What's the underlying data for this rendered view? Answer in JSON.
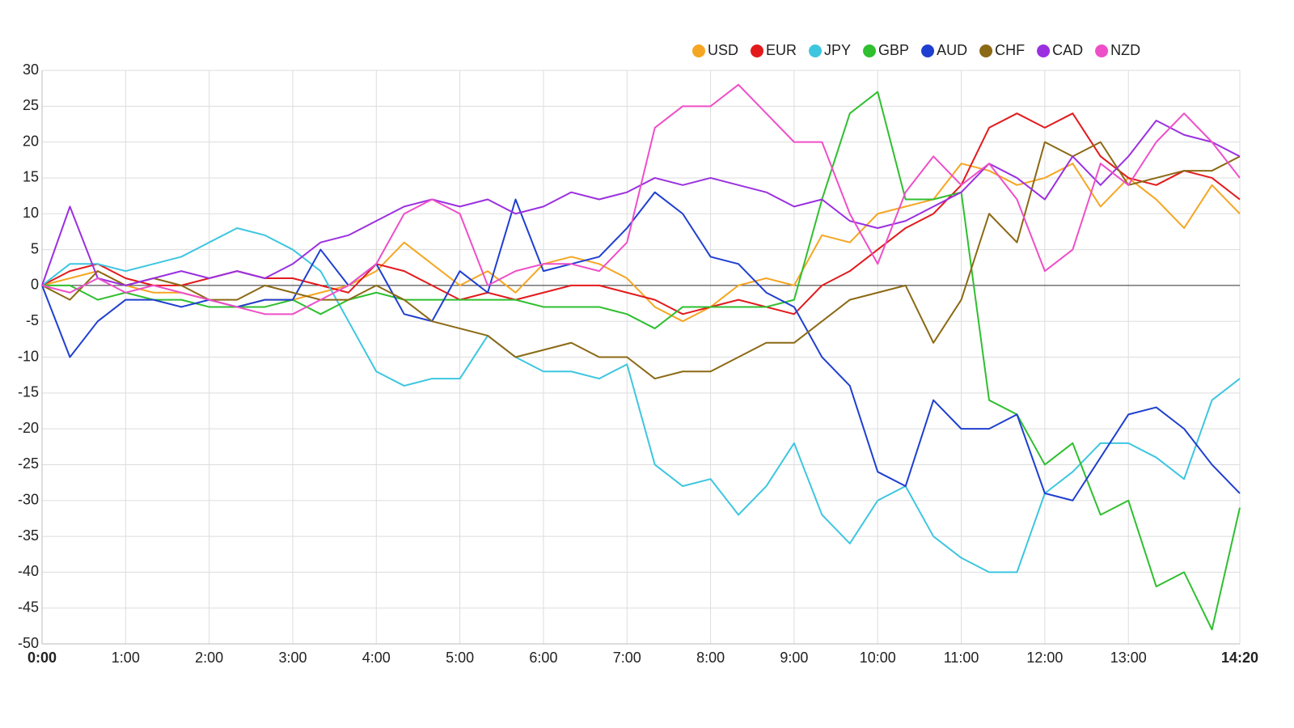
{
  "chart_data": {
    "type": "line",
    "x": [
      0,
      20,
      40,
      60,
      80,
      100,
      120,
      140,
      160,
      180,
      200,
      220,
      240,
      260,
      280,
      300,
      320,
      340,
      360,
      380,
      400,
      420,
      440,
      460,
      480,
      500,
      520,
      540,
      560,
      580,
      600,
      620,
      640,
      660,
      680,
      700,
      720,
      740,
      760,
      780,
      800,
      820,
      840,
      860
    ],
    "xlim": [
      0,
      860
    ],
    "xticks": [
      {
        "value": 0,
        "label": "0:00"
      },
      {
        "value": 60,
        "label": "1:00"
      },
      {
        "value": 120,
        "label": "2:00"
      },
      {
        "value": 180,
        "label": "3:00"
      },
      {
        "value": 240,
        "label": "4:00"
      },
      {
        "value": 300,
        "label": "5:00"
      },
      {
        "value": 360,
        "label": "6:00"
      },
      {
        "value": 420,
        "label": "7:00"
      },
      {
        "value": 480,
        "label": "8:00"
      },
      {
        "value": 540,
        "label": "9:00"
      },
      {
        "value": 600,
        "label": "10:00"
      },
      {
        "value": 660,
        "label": "11:00"
      },
      {
        "value": 720,
        "label": "12:00"
      },
      {
        "value": 780,
        "label": "13:00"
      },
      {
        "value": 860,
        "label": "14:20"
      }
    ],
    "ylim": [
      -50,
      30
    ],
    "yticks": [
      -50,
      -45,
      -40,
      -35,
      -30,
      -25,
      -20,
      -15,
      -10,
      -5,
      0,
      5,
      10,
      15,
      20,
      25,
      30
    ],
    "grid": true,
    "legend": "top-right",
    "series": [
      {
        "name": "USD",
        "color": "#f5a623",
        "values": [
          0,
          1,
          2,
          0,
          -1,
          -1,
          -2,
          -3,
          -2,
          -2,
          -1,
          0,
          2,
          6,
          3,
          0,
          2,
          -1,
          3,
          4,
          3,
          1,
          -3,
          -5,
          -3,
          0,
          1,
          0,
          7,
          6,
          10,
          11,
          12,
          17,
          16,
          14,
          15,
          17,
          11,
          15,
          12,
          8,
          14,
          10
        ]
      },
      {
        "name": "EUR",
        "color": "#e31a1c",
        "values": [
          0,
          2,
          3,
          1,
          0,
          0,
          1,
          2,
          1,
          1,
          0,
          -1,
          3,
          2,
          0,
          -2,
          -1,
          -2,
          -1,
          0,
          0,
          -1,
          -2,
          -4,
          -3,
          -2,
          -3,
          -4,
          0,
          2,
          5,
          8,
          10,
          14,
          22,
          24,
          22,
          24,
          18,
          15,
          14,
          16,
          15,
          12
        ]
      },
      {
        "name": "JPY",
        "color": "#3ec6e0",
        "values": [
          0,
          3,
          3,
          2,
          3,
          4,
          6,
          8,
          7,
          5,
          2,
          -5,
          -12,
          -14,
          -13,
          -13,
          -7,
          -10,
          -12,
          -12,
          -13,
          -11,
          -25,
          -28,
          -27,
          -32,
          -28,
          -22,
          -32,
          -36,
          -30,
          -28,
          -35,
          -38,
          -40,
          -40,
          -29,
          -26,
          -22,
          -22,
          -24,
          -27,
          -16,
          -13
        ]
      },
      {
        "name": "GBP",
        "color": "#2fbf2f",
        "values": [
          0,
          0,
          -2,
          -1,
          -2,
          -2,
          -3,
          -3,
          -3,
          -2,
          -4,
          -2,
          -1,
          -2,
          -2,
          -2,
          -2,
          -2,
          -3,
          -3,
          -3,
          -4,
          -6,
          -3,
          -3,
          -3,
          -3,
          -2,
          12,
          24,
          27,
          12,
          12,
          13,
          -16,
          -18,
          -25,
          -22,
          -32,
          -30,
          -42,
          -40,
          -48,
          -31
        ]
      },
      {
        "name": "AUD",
        "color": "#1f3fd0",
        "values": [
          0,
          -10,
          -5,
          -2,
          -2,
          -3,
          -2,
          -3,
          -2,
          -2,
          5,
          0,
          3,
          -4,
          -5,
          2,
          -1,
          12,
          2,
          3,
          4,
          8,
          13,
          10,
          4,
          3,
          -1,
          -3,
          -10,
          -14,
          -26,
          -28,
          -16,
          -20,
          -20,
          -18,
          -29,
          -30,
          -24,
          -18,
          -17,
          -20,
          -25,
          -29
        ]
      },
      {
        "name": "CHF",
        "color": "#8b6914",
        "values": [
          0,
          -2,
          2,
          0,
          1,
          0,
          -2,
          -2,
          0,
          -1,
          -2,
          -2,
          0,
          -2,
          -5,
          -6,
          -7,
          -10,
          -9,
          -8,
          -10,
          -10,
          -13,
          -12,
          -12,
          -10,
          -8,
          -8,
          -5,
          -2,
          -1,
          0,
          -8,
          -2,
          10,
          6,
          20,
          18,
          20,
          14,
          15,
          16,
          16,
          18
        ]
      },
      {
        "name": "CAD",
        "color": "#9b30e0",
        "values": [
          0,
          11,
          1,
          0,
          1,
          2,
          1,
          2,
          1,
          3,
          6,
          7,
          9,
          11,
          12,
          11,
          12,
          10,
          11,
          13,
          12,
          13,
          15,
          14,
          15,
          14,
          13,
          11,
          12,
          9,
          8,
          9,
          11,
          13,
          17,
          15,
          12,
          18,
          14,
          18,
          23,
          21,
          20,
          18
        ]
      },
      {
        "name": "NZD",
        "color": "#ee4fc8",
        "values": [
          0,
          -1,
          1,
          -1,
          0,
          -1,
          -2,
          -3,
          -4,
          -4,
          -2,
          0,
          3,
          10,
          12,
          10,
          0,
          2,
          3,
          3,
          2,
          6,
          22,
          25,
          25,
          28,
          24,
          20,
          20,
          10,
          3,
          13,
          18,
          14,
          17,
          12,
          2,
          5,
          17,
          14,
          20,
          24,
          20,
          15
        ]
      }
    ]
  }
}
